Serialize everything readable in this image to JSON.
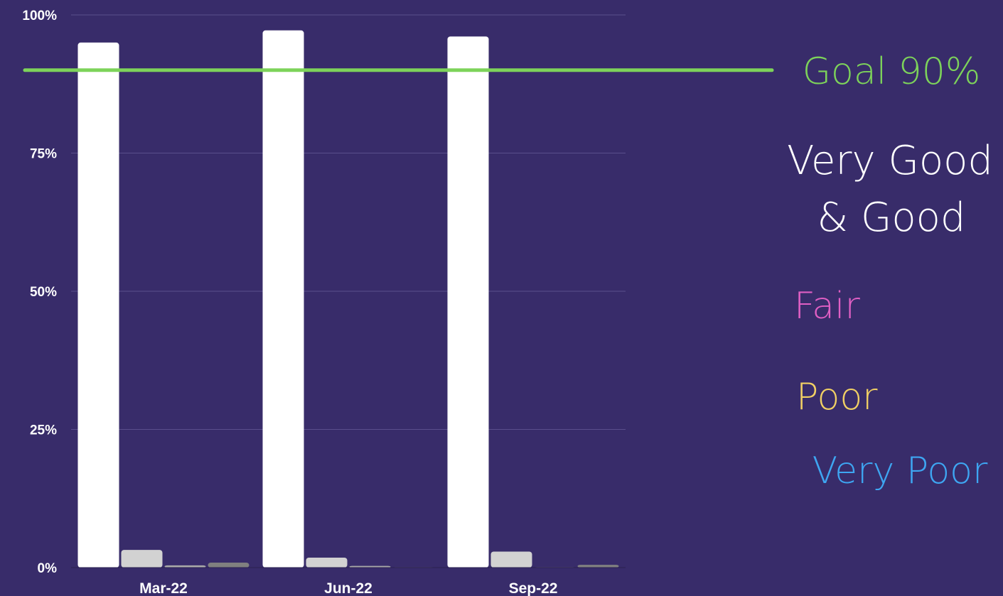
{
  "chart_data": {
    "type": "bar",
    "categories": [
      "Mar-22",
      "Jun-22",
      "Sep-22"
    ],
    "series": [
      {
        "name": "Very Good & Good",
        "color": "#ffffff",
        "values": [
          95.0,
          97.2,
          96.1
        ]
      },
      {
        "name": "Fair",
        "color": "#d2d2d2",
        "values": [
          3.2,
          1.8,
          2.9
        ]
      },
      {
        "name": "Poor",
        "color": "#a9a9a9",
        "values": [
          0.4,
          0.3,
          0.0
        ]
      },
      {
        "name": "Very Poor",
        "color": "#808080",
        "values": [
          0.9,
          0.0,
          0.5
        ]
      }
    ],
    "ylim": [
      0,
      100
    ],
    "yticks": [
      0,
      25,
      50,
      75,
      100
    ],
    "ytick_labels": [
      "0%",
      "25%",
      "50%",
      "75%",
      "100%"
    ],
    "goal": {
      "label": "Goal 90%",
      "value": 90,
      "color": "#7dd35a"
    },
    "grid": true,
    "legend": [
      {
        "text": "Very Good",
        "color": "#ffffff"
      },
      {
        "text": "& Good",
        "color": "#ffffff"
      },
      {
        "text": "Fair",
        "color": "#e05fc4"
      },
      {
        "text": "Poor",
        "color": "#f1d064"
      },
      {
        "text": "Very Poor",
        "color": "#3ea6f2"
      }
    ],
    "legend_placement": "right"
  }
}
